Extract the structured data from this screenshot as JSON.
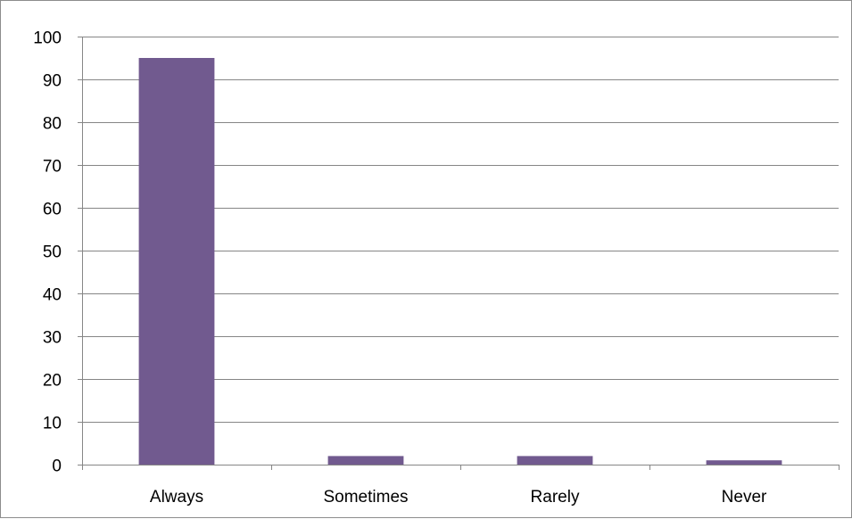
{
  "chart_data": {
    "type": "bar",
    "categories": [
      "Always",
      "Sometimes",
      "Rarely",
      "Never"
    ],
    "values": [
      95,
      2,
      2,
      1
    ],
    "title": "",
    "xlabel": "",
    "ylabel": "",
    "ylim": [
      0,
      100
    ],
    "yticks": [
      0,
      10,
      20,
      30,
      40,
      50,
      60,
      70,
      80,
      90,
      100
    ],
    "grid": "horizontal",
    "legend": "none",
    "bar_color": "#715a8f",
    "grid_color": "#868686"
  }
}
